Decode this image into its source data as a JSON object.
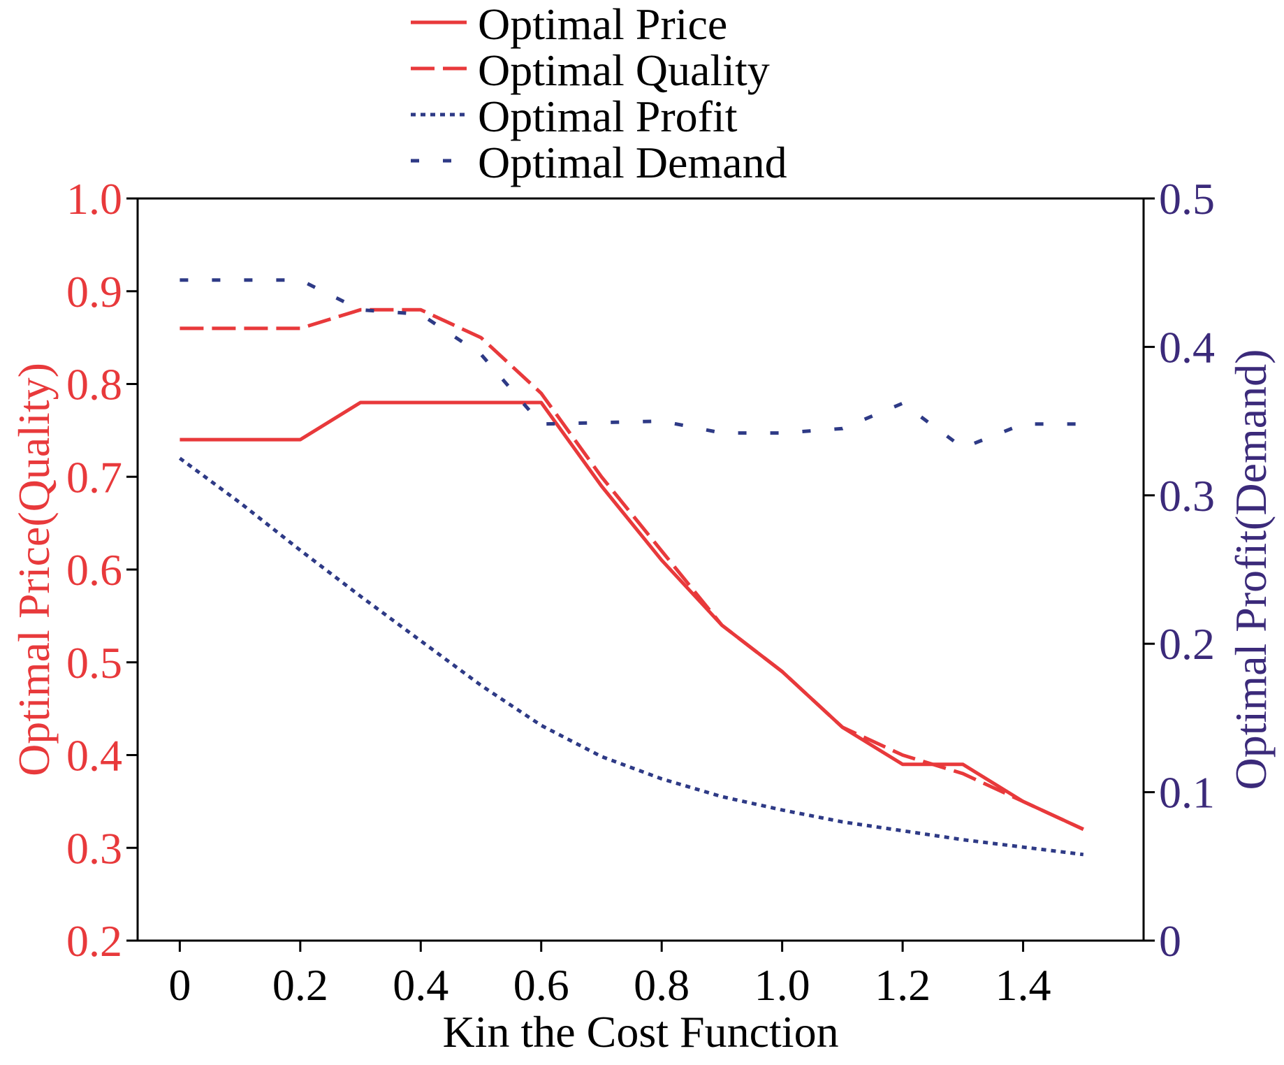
{
  "colors": {
    "left_axis": "#e8393b",
    "right_axis": "#3b2a7a",
    "price": "#e8393b",
    "quality": "#e8393b",
    "profit": "#2e3a86",
    "demand": "#2e3a86",
    "frame": "#000000"
  },
  "chart_data": {
    "type": "line",
    "xlabel": "Kin the Cost Function",
    "ylabel_left": "Optimal Price(Quality)",
    "ylabel_right": "Optimal Profit(Demand)",
    "xlim": [
      -0.07,
      1.6
    ],
    "ylim_left": [
      0.2,
      1.0
    ],
    "ylim_right": [
      0,
      0.5
    ],
    "x_ticks": [
      0,
      0.2,
      0.4,
      0.6,
      0.8,
      1.0,
      1.2,
      1.4
    ],
    "x_tick_labels": [
      "0",
      "0.2",
      "0.4",
      "0.6",
      "0.8",
      "1.0",
      "1.2",
      "1.4"
    ],
    "y_left_ticks": [
      0.2,
      0.3,
      0.4,
      0.5,
      0.6,
      0.7,
      0.8,
      0.9,
      1.0
    ],
    "y_left_tick_labels": [
      "0.2",
      "0.3",
      "0.4",
      "0.5",
      "0.6",
      "0.7",
      "0.8",
      "0.9",
      "1.0"
    ],
    "y_right_ticks": [
      0,
      0.1,
      0.2,
      0.3,
      0.4,
      0.5
    ],
    "y_right_tick_labels": [
      "0",
      "0.1",
      "0.2",
      "0.3",
      "0.4",
      "0.5"
    ],
    "legend_position": "top-center",
    "grid": false,
    "series": [
      {
        "name": "Optimal Price",
        "axis": "left",
        "style": "solid",
        "x": [
          0,
          0.2,
          0.3,
          0.6,
          0.7,
          0.8,
          0.9,
          1.0,
          1.1,
          1.2,
          1.3,
          1.4,
          1.5
        ],
        "values": [
          0.74,
          0.74,
          0.78,
          0.78,
          0.69,
          0.61,
          0.54,
          0.49,
          0.43,
          0.39,
          0.39,
          0.35,
          0.32
        ]
      },
      {
        "name": "Optimal Quality",
        "axis": "left",
        "style": "dashed",
        "x": [
          0,
          0.2,
          0.3,
          0.4,
          0.5,
          0.6,
          0.7,
          0.8,
          0.9,
          1.0,
          1.1,
          1.2,
          1.3,
          1.4,
          1.5
        ],
        "values": [
          0.86,
          0.86,
          0.88,
          0.88,
          0.85,
          0.79,
          0.7,
          0.62,
          0.54,
          0.49,
          0.43,
          0.4,
          0.38,
          0.35,
          0.32
        ]
      },
      {
        "name": "Optimal Profit",
        "axis": "right",
        "style": "dotted",
        "x": [
          0,
          0.1,
          0.2,
          0.3,
          0.4,
          0.5,
          0.6,
          0.7,
          0.8,
          0.9,
          1.0,
          1.1,
          1.2,
          1.3,
          1.4,
          1.5
        ],
        "values": [
          0.325,
          0.295,
          0.263,
          0.232,
          0.202,
          0.172,
          0.145,
          0.124,
          0.109,
          0.097,
          0.088,
          0.08,
          0.074,
          0.068,
          0.063,
          0.058
        ]
      },
      {
        "name": "Optimal Demand",
        "axis": "right",
        "style": "dashed-sparse",
        "x": [
          0,
          0.2,
          0.3,
          0.4,
          0.5,
          0.6,
          0.8,
          0.9,
          1.0,
          1.1,
          1.2,
          1.3,
          1.4,
          1.5
        ],
        "values": [
          0.445,
          0.445,
          0.425,
          0.422,
          0.395,
          0.348,
          0.35,
          0.342,
          0.342,
          0.345,
          0.362,
          0.332,
          0.348,
          0.348
        ]
      }
    ]
  }
}
